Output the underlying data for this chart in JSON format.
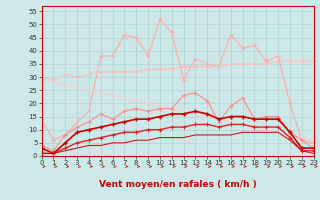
{
  "xlabel": "Vent moyen/en rafales ( km/h )",
  "xlim": [
    0,
    23
  ],
  "ylim": [
    0,
    57
  ],
  "yticks": [
    0,
    5,
    10,
    15,
    20,
    25,
    30,
    35,
    40,
    45,
    50,
    55
  ],
  "xticks": [
    0,
    1,
    2,
    3,
    4,
    5,
    6,
    7,
    8,
    9,
    10,
    11,
    12,
    13,
    14,
    15,
    16,
    17,
    18,
    19,
    20,
    21,
    22,
    23
  ],
  "bg_color": "#cce8e8",
  "grid_color": "#aacccc",
  "series": [
    {
      "name": "spiky_light",
      "color": "#ffaaaa",
      "lw": 0.8,
      "marker": "+",
      "ms": 3,
      "mew": 0.8,
      "alpha": 1.0,
      "y": [
        14,
        6,
        8,
        13,
        17,
        38,
        38,
        46,
        45,
        38,
        52,
        47,
        29,
        37,
        35,
        34,
        46,
        41,
        42,
        36,
        38,
        20,
        6,
        5
      ]
    },
    {
      "name": "flat_pink",
      "color": "#ffbbbb",
      "lw": 0.8,
      "marker": "+",
      "ms": 3,
      "mew": 0.8,
      "alpha": 1.0,
      "y": [
        29,
        29,
        31,
        30,
        31,
        32,
        32,
        32,
        32,
        33,
        33,
        33,
        34,
        34,
        34,
        34,
        35,
        35,
        35,
        35,
        36,
        36,
        36,
        36
      ]
    },
    {
      "name": "diagonal_pink",
      "color": "#ffcccc",
      "lw": 0.8,
      "marker": null,
      "ms": 0,
      "mew": 0.5,
      "alpha": 1.0,
      "y": [
        30,
        28,
        27,
        26,
        25,
        24,
        23,
        22,
        21,
        20,
        19,
        18,
        17,
        16,
        15,
        14,
        13,
        12,
        11,
        10,
        9,
        8,
        7,
        6
      ]
    },
    {
      "name": "medium_pink",
      "color": "#ff8888",
      "lw": 0.8,
      "marker": "+",
      "ms": 3,
      "mew": 0.8,
      "alpha": 1.0,
      "y": [
        4,
        2,
        8,
        11,
        13,
        16,
        14,
        17,
        18,
        17,
        18,
        18,
        23,
        24,
        21,
        13,
        19,
        22,
        14,
        15,
        15,
        9,
        6,
        3
      ]
    },
    {
      "name": "dark_red_main",
      "color": "#cc0000",
      "lw": 1.2,
      "marker": "+",
      "ms": 3,
      "mew": 1.0,
      "alpha": 1.0,
      "y": [
        3,
        1,
        5,
        9,
        10,
        11,
        12,
        13,
        14,
        14,
        15,
        16,
        16,
        17,
        16,
        14,
        15,
        15,
        14,
        14,
        14,
        9,
        3,
        3
      ]
    },
    {
      "name": "dark_red_low",
      "color": "#dd2222",
      "lw": 1.0,
      "marker": "+",
      "ms": 3,
      "mew": 0.8,
      "alpha": 1.0,
      "y": [
        1,
        1,
        3,
        5,
        6,
        7,
        8,
        9,
        9,
        10,
        10,
        11,
        11,
        12,
        12,
        11,
        12,
        12,
        11,
        11,
        11,
        7,
        2,
        2
      ]
    },
    {
      "name": "bottom_line",
      "color": "#cc0000",
      "lw": 0.8,
      "marker": null,
      "ms": 0,
      "mew": 0.5,
      "alpha": 0.9,
      "y": [
        1,
        1,
        2,
        3,
        4,
        4,
        5,
        5,
        6,
        6,
        7,
        7,
        7,
        8,
        8,
        8,
        8,
        9,
        9,
        9,
        9,
        6,
        2,
        1
      ]
    }
  ],
  "arrow_color": "#cc0000",
  "xlabel_color": "#cc0000",
  "xlabel_fontsize": 6.5,
  "tick_fontsize": 5,
  "spine_color": "#cc0000"
}
